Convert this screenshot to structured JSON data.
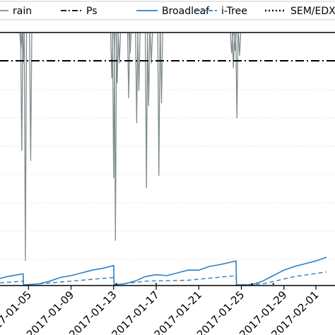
{
  "chart_data": {
    "type": "line",
    "x_unit": "date",
    "x_ticks": [
      "2017-01-05",
      "2017-01-09",
      "2017-01-13",
      "2017-01-17",
      "2017-01-21",
      "2017-01-25",
      "2017-01-29",
      "2017-02-01"
    ],
    "x_range": [
      "2017-01-01",
      "2017-02-02"
    ],
    "grid": "horizontal-dotted",
    "legend": {
      "placement": "top",
      "entries": [
        {
          "label": "rain",
          "color": "#7f8c8d",
          "style": "solid"
        },
        {
          "label": "Ps",
          "color": "#000000",
          "style": "dashdot"
        },
        {
          "label": "Broadleaf",
          "color": "#2e7fc0",
          "style": "solid"
        },
        {
          "label": "i-Tree",
          "color": "#2e7fc0",
          "style": "dashed"
        },
        {
          "label": "SEM/EDX",
          "color": "#000000",
          "style": "dotted"
        }
      ]
    },
    "series": [
      {
        "name": "rain",
        "color": "#7f8c8d",
        "style": "spikes",
        "baseline": 0,
        "ylim": [
          0,
          100
        ],
        "spikes": [
          {
            "x": "2017-01-04T07:00",
            "depth": 6
          },
          {
            "x": "2017-01-04T09:00",
            "depth": 47
          },
          {
            "x": "2017-01-04T12:00",
            "depth": 12
          },
          {
            "x": "2017-01-04T17:00",
            "depth": 91
          },
          {
            "x": "2017-01-05T05:00",
            "depth": 51
          },
          {
            "x": "2017-01-12T20:00",
            "depth": 18
          },
          {
            "x": "2017-01-13T00:00",
            "depth": 58
          },
          {
            "x": "2017-01-13T04:00",
            "depth": 83
          },
          {
            "x": "2017-01-13T08:00",
            "depth": 20
          },
          {
            "x": "2017-01-13T13:00",
            "depth": 12
          },
          {
            "x": "2017-01-14T10:00",
            "depth": 26
          },
          {
            "x": "2017-01-14T13:00",
            "depth": 8
          },
          {
            "x": "2017-01-15T04:00",
            "depth": 36
          },
          {
            "x": "2017-01-15T09:00",
            "depth": 23
          },
          {
            "x": "2017-01-16T02:00",
            "depth": 62
          },
          {
            "x": "2017-01-16T07:00",
            "depth": 29
          },
          {
            "x": "2017-01-16T13:00",
            "depth": 12
          },
          {
            "x": "2017-01-17T06:00",
            "depth": 57
          },
          {
            "x": "2017-01-17T12:00",
            "depth": 28
          },
          {
            "x": "2017-01-24T02:00",
            "depth": 8
          },
          {
            "x": "2017-01-24T06:00",
            "depth": 14
          },
          {
            "x": "2017-01-24T10:00",
            "depth": 7
          },
          {
            "x": "2017-01-24T14:00",
            "depth": 34
          },
          {
            "x": "2017-01-24T20:00",
            "depth": 9
          }
        ]
      },
      {
        "name": "Ps",
        "color": "#000000",
        "style": "dashdot",
        "constant": 10
      },
      {
        "name": "Broadleaf",
        "color": "#2e7fc0",
        "style": "solid",
        "ylim": [
          0,
          10
        ],
        "points": [
          [
            "2017-01-01T00:00",
            0.3
          ],
          [
            "2017-01-02T00:00",
            0.6
          ],
          [
            "2017-01-03T00:00",
            0.9
          ],
          [
            "2017-01-04T12:00",
            1.2
          ],
          [
            "2017-01-04T13:00",
            0.0
          ],
          [
            "2017-01-06T00:00",
            0.1
          ],
          [
            "2017-01-07T00:00",
            0.4
          ],
          [
            "2017-01-08T00:00",
            0.8
          ],
          [
            "2017-01-09T00:00",
            1.0
          ],
          [
            "2017-01-10T00:00",
            1.3
          ],
          [
            "2017-01-11T00:00",
            1.6
          ],
          [
            "2017-01-12T00:00",
            1.8
          ],
          [
            "2017-01-13T00:00",
            2.1
          ],
          [
            "2017-01-13T01:00",
            0.0
          ],
          [
            "2017-01-14T00:00",
            0.1
          ],
          [
            "2017-01-15T00:00",
            0.4
          ],
          [
            "2017-01-16T00:00",
            0.9
          ],
          [
            "2017-01-17T00:00",
            1.1
          ],
          [
            "2017-01-18T00:00",
            1.0
          ],
          [
            "2017-01-19T00:00",
            1.3
          ],
          [
            "2017-01-20T00:00",
            1.6
          ],
          [
            "2017-01-21T00:00",
            1.6
          ],
          [
            "2017-01-22T00:00",
            2.0
          ],
          [
            "2017-01-23T00:00",
            2.2
          ],
          [
            "2017-01-24T12:00",
            2.6
          ],
          [
            "2017-01-24T13:00",
            0.0
          ],
          [
            "2017-01-26T00:00",
            0.0
          ],
          [
            "2017-01-27T00:00",
            0.4
          ],
          [
            "2017-01-28T00:00",
            1.0
          ],
          [
            "2017-01-29T00:00",
            1.6
          ],
          [
            "2017-01-30T00:00",
            2.0
          ],
          [
            "2017-01-31T00:00",
            2.3
          ],
          [
            "2017-02-01T00:00",
            2.6
          ],
          [
            "2017-02-02T00:00",
            3.0
          ]
        ]
      },
      {
        "name": "i-Tree",
        "color": "#2e7fc0",
        "style": "dashed",
        "ylim": [
          0,
          10
        ],
        "points": [
          [
            "2017-01-01T00:00",
            0.1
          ],
          [
            "2017-01-04T12:00",
            0.4
          ],
          [
            "2017-01-04T13:00",
            0.0
          ],
          [
            "2017-01-06T00:00",
            0.1
          ],
          [
            "2017-01-09T00:00",
            0.4
          ],
          [
            "2017-01-12T00:00",
            0.7
          ],
          [
            "2017-01-13T00:00",
            0.8
          ],
          [
            "2017-01-13T01:00",
            0.0
          ],
          [
            "2017-01-16T00:00",
            0.4
          ],
          [
            "2017-01-20T00:00",
            0.5
          ],
          [
            "2017-01-24T12:00",
            1.0
          ],
          [
            "2017-01-24T13:00",
            0.0
          ],
          [
            "2017-01-27T00:00",
            0.1
          ],
          [
            "2017-01-30T00:00",
            0.9
          ],
          [
            "2017-02-02T00:00",
            1.4
          ]
        ]
      },
      {
        "name": "SEM/EDX",
        "color": "#000000",
        "style": "dotted",
        "points": [
          [
            "2017-01-13T06:00",
            0.1
          ],
          [
            "2017-01-17T00:00",
            0.1
          ],
          [
            "2017-01-26T00:00",
            0.1
          ],
          [
            "2017-01-28T00:00",
            0.1
          ]
        ]
      }
    ]
  }
}
